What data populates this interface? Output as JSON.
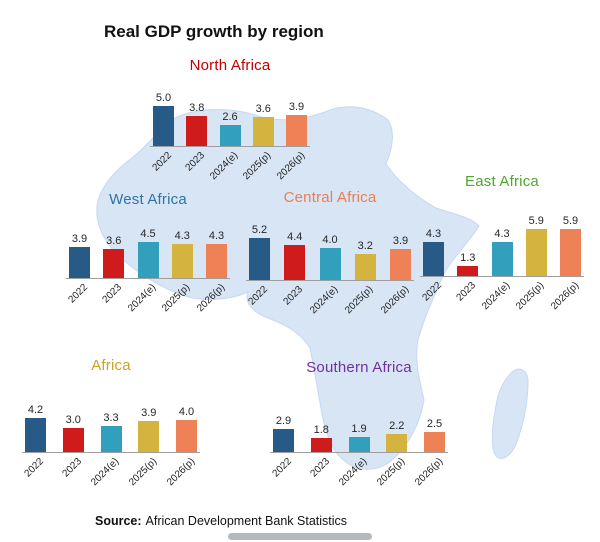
{
  "title": "Real GDP growth by region",
  "source": {
    "label": "Source:",
    "text": "African Development Bank Statistics"
  },
  "colors": {
    "bar_series": [
      "#275A87",
      "#CF1B1B",
      "#32A0BC",
      "#D4B33F",
      "#EE8156"
    ],
    "map_fill": "#D7E5F5",
    "map_stroke": "#C6D9EF",
    "baseline": "#9E9E9E"
  },
  "chart_data": [
    {
      "type": "bar",
      "region": "north-africa",
      "title": "North Africa",
      "title_color": "#C00000",
      "categories": [
        "2022",
        "2023",
        "2024(e)",
        "2025(p)",
        "2026(p)"
      ],
      "values": [
        5.0,
        3.8,
        2.6,
        3.6,
        3.9
      ]
    },
    {
      "type": "bar",
      "region": "west-africa",
      "title": "West Africa",
      "title_color": "#2E74A6",
      "categories": [
        "2022",
        "2023",
        "2024(e)",
        "2025(p)",
        "2026(p)"
      ],
      "values": [
        3.9,
        3.6,
        4.5,
        4.3,
        4.3
      ]
    },
    {
      "type": "bar",
      "region": "central-africa",
      "title": "Central Africa",
      "title_color": "#ED7D52",
      "categories": [
        "2022",
        "2023",
        "2024(e)",
        "2025(p)",
        "2026(p)"
      ],
      "values": [
        5.2,
        4.4,
        4.0,
        3.2,
        3.9
      ]
    },
    {
      "type": "bar",
      "region": "east-africa",
      "title": "East Africa",
      "title_color": "#4EA72E",
      "categories": [
        "2022",
        "2023",
        "2024(e)",
        "2025(p)",
        "2026(p)"
      ],
      "values": [
        4.3,
        1.3,
        4.3,
        5.9,
        5.9
      ]
    },
    {
      "type": "bar",
      "region": "africa",
      "title": "Africa",
      "title_color": "#C9A227",
      "categories": [
        "2022",
        "2023",
        "2024(e)",
        "2025(p)",
        "2026(p)"
      ],
      "values": [
        4.2,
        3.0,
        3.3,
        3.9,
        4.0
      ]
    },
    {
      "type": "bar",
      "region": "southern-africa",
      "title": "Southern Africa",
      "title_color": "#7030A0",
      "categories": [
        "2022",
        "2023",
        "2024(e)",
        "2025(p)",
        "2026(p)"
      ],
      "values": [
        2.9,
        1.8,
        1.9,
        2.2,
        2.5
      ]
    }
  ]
}
